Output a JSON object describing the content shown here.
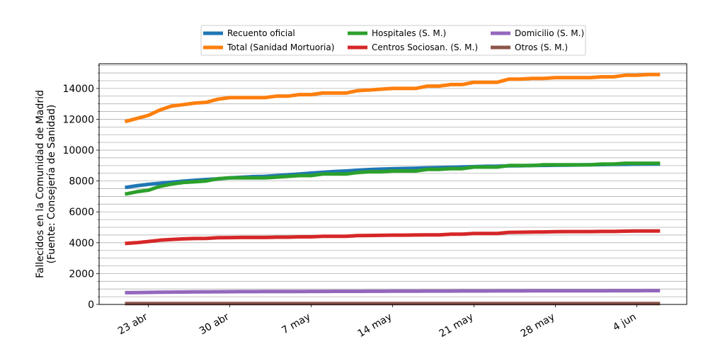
{
  "chart_data": {
    "type": "line",
    "ylabel": "Fallecidos en la Comunidad de Madrid\n(Fuente: Consejería de Sanidad)",
    "xlabel": "",
    "title": "",
    "ylim": [
      0,
      15600
    ],
    "yticks": [
      0,
      2000,
      4000,
      6000,
      8000,
      10000,
      12000,
      14000
    ],
    "grid": "horizontal minor lines",
    "legend": "top-center",
    "x_dates": [
      "2020-04-21",
      "2020-04-22",
      "2020-04-23",
      "2020-04-24",
      "2020-04-25",
      "2020-04-26",
      "2020-04-27",
      "2020-04-28",
      "2020-04-29",
      "2020-04-30",
      "2020-05-01",
      "2020-05-02",
      "2020-05-03",
      "2020-05-04",
      "2020-05-05",
      "2020-05-06",
      "2020-05-07",
      "2020-05-08",
      "2020-05-09",
      "2020-05-10",
      "2020-05-11",
      "2020-05-12",
      "2020-05-13",
      "2020-05-14",
      "2020-05-15",
      "2020-05-16",
      "2020-05-17",
      "2020-05-18",
      "2020-05-19",
      "2020-05-20",
      "2020-05-21",
      "2020-05-22",
      "2020-05-23",
      "2020-05-24",
      "2020-05-25",
      "2020-05-26",
      "2020-05-27",
      "2020-05-28",
      "2020-05-29",
      "2020-05-30",
      "2020-05-31",
      "2020-06-01",
      "2020-06-02",
      "2020-06-03",
      "2020-06-04",
      "2020-06-05",
      "2020-06-06"
    ],
    "xticks": [
      {
        "date": "2020-04-23",
        "label": "23 abr"
      },
      {
        "date": "2020-04-30",
        "label": "30 abr"
      },
      {
        "date": "2020-05-07",
        "label": "7 may"
      },
      {
        "date": "2020-05-14",
        "label": "14 may"
      },
      {
        "date": "2020-05-21",
        "label": "21 may"
      },
      {
        "date": "2020-05-28",
        "label": "28 may"
      },
      {
        "date": "2020-06-04",
        "label": "4 jun"
      }
    ],
    "series": [
      {
        "name": "Recuento oficial",
        "color": "#1f77b4",
        "values": [
          7580,
          7690,
          7780,
          7850,
          7920,
          7990,
          8050,
          8100,
          8140,
          8200,
          8240,
          8280,
          8300,
          8350,
          8400,
          8450,
          8510,
          8560,
          8610,
          8650,
          8700,
          8740,
          8770,
          8790,
          8810,
          8830,
          8850,
          8870,
          8890,
          8910,
          8930,
          8950,
          8960,
          8980,
          8990,
          9000,
          9010,
          9020,
          9030,
          9040,
          9050,
          9060,
          9070,
          9080,
          9090,
          9100,
          9100
        ]
      },
      {
        "name": "Total (Sanidad Mortuoria)",
        "color": "#ff7f0e",
        "values": [
          11850,
          12050,
          12250,
          12600,
          12850,
          12950,
          13050,
          13100,
          13300,
          13400,
          13400,
          13400,
          13400,
          13500,
          13500,
          13600,
          13600,
          13700,
          13700,
          13700,
          13850,
          13900,
          13950,
          14000,
          14000,
          14000,
          14150,
          14150,
          14250,
          14250,
          14400,
          14400,
          14400,
          14600,
          14600,
          14650,
          14650,
          14700,
          14700,
          14700,
          14700,
          14750,
          14750,
          14850,
          14850,
          14900,
          14900
        ]
      },
      {
        "name": "Hospitales (S. M.)",
        "color": "#2ca02c",
        "values": [
          7150,
          7300,
          7400,
          7650,
          7800,
          7900,
          7950,
          8000,
          8150,
          8200,
          8200,
          8200,
          8200,
          8250,
          8300,
          8350,
          8350,
          8450,
          8450,
          8450,
          8550,
          8600,
          8600,
          8650,
          8650,
          8650,
          8750,
          8750,
          8800,
          8800,
          8900,
          8900,
          8900,
          9000,
          9000,
          9000,
          9050,
          9050,
          9050,
          9050,
          9050,
          9100,
          9100,
          9150,
          9150,
          9150,
          9150
        ]
      },
      {
        "name": "Centros Sociosan. (S. M.)",
        "color": "#d62728",
        "values": [
          3950,
          4000,
          4080,
          4160,
          4210,
          4250,
          4270,
          4280,
          4320,
          4330,
          4340,
          4340,
          4340,
          4360,
          4360,
          4380,
          4380,
          4420,
          4420,
          4420,
          4460,
          4470,
          4480,
          4490,
          4490,
          4500,
          4510,
          4510,
          4550,
          4550,
          4600,
          4600,
          4600,
          4670,
          4680,
          4690,
          4700,
          4710,
          4720,
          4720,
          4720,
          4730,
          4730,
          4750,
          4760,
          4760,
          4760
        ]
      },
      {
        "name": "Domicilio (S. M.)",
        "color": "#9467bd",
        "values": [
          760,
          770,
          780,
          790,
          800,
          805,
          810,
          815,
          820,
          825,
          830,
          830,
          835,
          835,
          840,
          840,
          845,
          845,
          850,
          850,
          850,
          855,
          855,
          860,
          860,
          860,
          865,
          865,
          865,
          870,
          870,
          870,
          875,
          875,
          875,
          880,
          880,
          880,
          880,
          885,
          885,
          885,
          890,
          890,
          890,
          895,
          895
        ]
      },
      {
        "name": "Otros (S. M.)",
        "color": "#8c564b",
        "values": [
          60,
          60,
          60,
          60,
          60,
          60,
          60,
          60,
          60,
          60,
          60,
          60,
          60,
          60,
          60,
          60,
          60,
          60,
          60,
          60,
          60,
          60,
          60,
          60,
          60,
          60,
          60,
          60,
          60,
          60,
          60,
          60,
          60,
          60,
          60,
          60,
          60,
          60,
          60,
          60,
          60,
          60,
          60,
          60,
          60,
          60,
          60
        ]
      }
    ]
  }
}
